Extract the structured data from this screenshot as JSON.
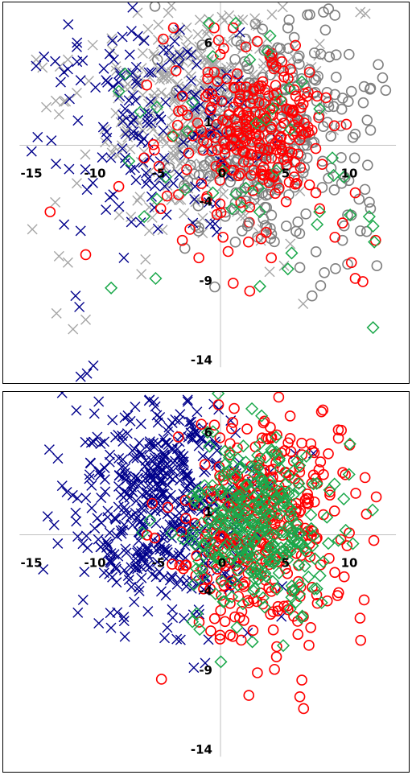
{
  "chart_data": [
    {
      "type": "scatter",
      "xlim": [
        -15,
        13
      ],
      "ylim": [
        -14,
        9
      ],
      "x_ticks": [
        "-15",
        "-10",
        "-5",
        "0",
        "5",
        "10"
      ],
      "y_ticks": [
        "6",
        "1",
        "-4",
        "-9",
        "-14"
      ],
      "grid": false,
      "series": [
        {
          "marker": "x",
          "color": "#a6a6a6",
          "center": [
            -1.5,
            2.5
          ],
          "spread": [
            4.0,
            3.5
          ],
          "count": 380
        },
        {
          "marker": "circle",
          "color": "#808080",
          "center": [
            4.0,
            0.5
          ],
          "spread": [
            3.5,
            3.5
          ],
          "count": 300
        },
        {
          "marker": "x",
          "color": "#00008b",
          "center": [
            -5.0,
            1.5
          ],
          "spread": [
            3.5,
            3.5
          ],
          "count": 150
        },
        {
          "marker": "circle",
          "color": "#ff0000",
          "center": [
            2.5,
            1.0
          ],
          "spread": [
            2.5,
            2.5
          ],
          "count": 220
        }
      ],
      "marker_points": {
        "x_navy": [
          [
            -13.0,
            5.3
          ],
          [
            -11.3,
            6.2
          ],
          [
            -8.5,
            6.6
          ],
          [
            -7.0,
            7.2
          ],
          [
            -6.0,
            6.6
          ],
          [
            -14.5,
            5.0
          ],
          [
            -12.0,
            4.8
          ],
          [
            -9.0,
            4.1
          ],
          [
            -7.5,
            2.3
          ],
          [
            -13.3,
            0.3
          ],
          [
            -11.0,
            4.1
          ],
          [
            -10.5,
            -2.8
          ],
          [
            -11.0,
            -5.4
          ],
          [
            -12.3,
            -5.0
          ],
          [
            -7.6,
            -7.1
          ],
          [
            -11.4,
            -9.5
          ],
          [
            -11.1,
            -10.2
          ],
          [
            -10.5,
            -14.4
          ],
          [
            -11.0,
            -14.6
          ],
          [
            -10.0,
            -13.9
          ],
          [
            -3.7,
            -2.4
          ],
          [
            -2.0,
            -2.6
          ]
        ],
        "x_gray": [
          [
            -14.5,
            5.4
          ],
          [
            -14.0,
            4.9
          ],
          [
            -13.7,
            2.4
          ],
          [
            -12.0,
            5.4
          ],
          [
            -11.3,
            3.3
          ],
          [
            -13.0,
            -3.6
          ],
          [
            -14.8,
            -5.3
          ],
          [
            -11.3,
            -2.4
          ],
          [
            -12.7,
            -7.0
          ],
          [
            -12.0,
            -7.4
          ],
          [
            -10.6,
            -11.0
          ],
          [
            -11.6,
            -11.6
          ],
          [
            -12.9,
            -10.6
          ],
          [
            -5.6,
            -5.4
          ],
          [
            -5.9,
            -7.2
          ],
          [
            3.3,
            -5.3
          ],
          [
            3.0,
            -5.5
          ],
          [
            6.5,
            -10.0
          ],
          [
            5.0,
            -7.6
          ],
          [
            11.0,
            8.4
          ],
          [
            11.4,
            8.3
          ],
          [
            2.7,
            8.0
          ],
          [
            1.8,
            6.2
          ],
          [
            5.7,
            5.6
          ]
        ],
        "o_gray": [
          [
            8.5,
            8.6
          ],
          [
            8.1,
            8.4
          ],
          [
            9.0,
            8.2
          ],
          [
            5.3,
            7.4
          ],
          [
            5.8,
            6.8
          ],
          [
            4.7,
            6.1
          ],
          [
            3.7,
            6.0
          ],
          [
            9.1,
            5.7
          ],
          [
            7.5,
            4.1
          ],
          [
            6.7,
            3.6
          ],
          [
            9.0,
            3.2
          ],
          [
            10.3,
            3.4
          ],
          [
            11.3,
            3.7
          ],
          [
            11.8,
            3.6
          ],
          [
            10.6,
            0.7
          ],
          [
            10.9,
            -3.4
          ],
          [
            11.8,
            -4.0
          ],
          [
            10.0,
            -4.4
          ],
          [
            11.0,
            -5.4
          ],
          [
            9.6,
            -6.0
          ],
          [
            10.0,
            -7.5
          ],
          [
            12.3,
            -7.6
          ],
          [
            7.2,
            -9.5
          ],
          [
            2.2,
            -4.9
          ],
          [
            1.7,
            -5.4
          ],
          [
            -2.8,
            -6.5
          ]
        ],
        "o_red": [
          [
            -0.5,
            7.4
          ],
          [
            -3.7,
            7.4
          ],
          [
            -4.5,
            6.7
          ],
          [
            1.0,
            7.4
          ],
          [
            2.0,
            6.2
          ],
          [
            -3.5,
            4.7
          ],
          [
            -5.8,
            3.8
          ],
          [
            -3.0,
            3.1
          ],
          [
            -2.6,
            1.9
          ],
          [
            -1.8,
            1.4
          ],
          [
            0.5,
            4.2
          ],
          [
            4.0,
            5.5
          ],
          [
            5.5,
            4.8
          ],
          [
            7.0,
            4.6
          ],
          [
            5.8,
            3.5
          ],
          [
            7.6,
            3.1
          ],
          [
            6.5,
            2.6
          ],
          [
            5.2,
            2.3
          ],
          [
            4.1,
            1.9
          ],
          [
            6.6,
            1.4
          ],
          [
            4.7,
            0.0
          ],
          [
            4.5,
            -1.4
          ],
          [
            3.2,
            -1.6
          ],
          [
            6.0,
            -2.4
          ],
          [
            7.0,
            -2.5
          ],
          [
            5.8,
            -2.0
          ],
          [
            8.0,
            -1.2
          ],
          [
            10.6,
            -3.0
          ],
          [
            9.6,
            -4.9
          ],
          [
            9.0,
            -5.8
          ],
          [
            10.3,
            -7.4
          ],
          [
            10.6,
            -8.4
          ],
          [
            11.2,
            -8.6
          ],
          [
            12.2,
            -6.0
          ],
          [
            7.8,
            -4.0
          ],
          [
            7.5,
            -3.0
          ],
          [
            -6.0,
            -0.8
          ],
          [
            -5.2,
            -0.3
          ],
          [
            -2.5,
            -0.5
          ],
          [
            -4.2,
            -3.2
          ],
          [
            -4.7,
            -4.0
          ],
          [
            -2.4,
            -5.3
          ],
          [
            1.6,
            -3.6
          ],
          [
            2.3,
            -3.9
          ],
          [
            0.6,
            -6.7
          ],
          [
            -3.0,
            -6.0
          ],
          [
            0.2,
            -5.8
          ],
          [
            -1.7,
            -7.1
          ],
          [
            1.0,
            -8.7
          ],
          [
            4.0,
            -7.1
          ],
          [
            3.2,
            -5.9
          ],
          [
            3.6,
            -5.5
          ],
          [
            2.2,
            -6.1
          ],
          [
            -13.4,
            -4.2
          ],
          [
            -10.6,
            -6.9
          ],
          [
            -8.0,
            -2.6
          ],
          [
            2.3,
            -9.2
          ],
          [
            5.0,
            4.3
          ],
          [
            5.9,
            6.3
          ],
          [
            8.3,
            3.0
          ],
          [
            4.5,
            0.3
          ]
        ],
        "diamond_green": [
          [
            0.9,
            -4.0
          ],
          [
            1.7,
            -3.9
          ],
          [
            3.1,
            -4.2
          ],
          [
            2.0,
            -2.7
          ],
          [
            3.0,
            -2.7
          ],
          [
            1.2,
            -3.1
          ],
          [
            -0.6,
            -3.0
          ],
          [
            -2.8,
            -2.8
          ],
          [
            -4.3,
            -2.0
          ],
          [
            -6.0,
            -4.5
          ],
          [
            -5.0,
            -3.4
          ],
          [
            -3.7,
            0.6
          ],
          [
            -2.6,
            0.9
          ],
          [
            -8.0,
            3.4
          ],
          [
            -7.5,
            4.5
          ],
          [
            -6.3,
            2.1
          ],
          [
            -5.0,
            2.4
          ],
          [
            2.8,
            1.4
          ],
          [
            3.6,
            1.6
          ],
          [
            4.1,
            2.3
          ],
          [
            4.7,
            2.9
          ],
          [
            5.4,
            3.6
          ],
          [
            2.3,
            5.4
          ],
          [
            3.7,
            5.9
          ],
          [
            6.4,
            4.0
          ],
          [
            7.8,
            2.3
          ],
          [
            8.8,
            -0.8
          ],
          [
            8.9,
            -1.9
          ],
          [
            9.7,
            -2.0
          ],
          [
            7.8,
            -4.2
          ],
          [
            7.6,
            -5.0
          ],
          [
            10.2,
            -4.4
          ],
          [
            11.7,
            -4.5
          ],
          [
            12.0,
            -5.1
          ],
          [
            12.1,
            -6.1
          ],
          [
            5.6,
            -6.8
          ],
          [
            5.3,
            -7.8
          ],
          [
            3.1,
            -8.9
          ],
          [
            -8.6,
            -9.0
          ],
          [
            -5.1,
            -8.4
          ],
          [
            12.0,
            -11.5
          ],
          [
            3.9,
            6.9
          ],
          [
            1.2,
            7.7
          ],
          [
            -0.9,
            7.7
          ],
          [
            -0.6,
            5.6
          ],
          [
            -2.2,
            2.7
          ],
          [
            -7.2,
            -1.0
          ],
          [
            0.2,
            -1.6
          ],
          [
            4.4,
            -1.6
          ],
          [
            5.5,
            1.0
          ]
        ]
      }
    },
    {
      "type": "scatter",
      "xlim": [
        -15,
        13
      ],
      "ylim": [
        -14,
        9
      ],
      "x_ticks": [
        "-15",
        "-10",
        "-5",
        "0",
        "5",
        "10"
      ],
      "y_ticks": [
        "6",
        "1",
        "-4",
        "-9",
        "-14"
      ],
      "grid": false,
      "series": [
        {
          "marker": "x",
          "color": "#00008b",
          "center": [
            -4.5,
            2.0
          ],
          "spread": [
            3.5,
            3.5
          ],
          "count": 520
        },
        {
          "marker": "circle",
          "color": "#ff0000",
          "center": [
            3.5,
            0.5
          ],
          "spread": [
            3.5,
            3.5
          ],
          "count": 380
        },
        {
          "marker": "diamond",
          "color": "#1aa84a",
          "center": [
            3.0,
            0.5
          ],
          "spread": [
            3.0,
            3.0
          ],
          "count": 320
        }
      ]
    }
  ]
}
